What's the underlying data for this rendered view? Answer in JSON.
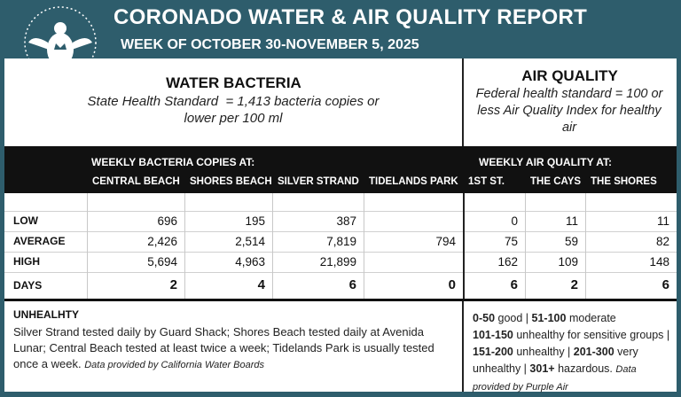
{
  "header": {
    "title": "CORONADO WATER & AIR QUALITY REPORT",
    "subtitle": "WEEK OF OCTOBER 30-NOVEMBER 5, 2025"
  },
  "water": {
    "heading": "WATER BACTERIA",
    "standard": "State Health Standard  = 1,413 bacteria copies or lower per 100 ml"
  },
  "air": {
    "heading": "AIR QUALITY",
    "standard": "Federal health standard = 100 or less Air Quality Index for healthy air"
  },
  "table": {
    "water_caption": "WEEKLY BACTERIA COPIES AT:",
    "air_caption": "WEEKLY AIR QUALITY AT:",
    "columns": [
      "CENTRAL BEACH",
      "SHORES BEACH",
      "SILVER STRAND",
      "TIDELANDS PARK",
      "1ST ST.",
      "THE CAYS",
      "THE SHORES"
    ],
    "rows": [
      {
        "label": "LOW",
        "cells": [
          "696",
          "195",
          "387",
          null,
          "0",
          "11",
          "11"
        ]
      },
      {
        "label": "AVERAGE",
        "cells": [
          "2,426",
          "2,514",
          "7,819",
          "794",
          "75",
          "59",
          "82"
        ]
      },
      {
        "label": "HIGH",
        "cells": [
          "5,694",
          "4,963",
          "21,899",
          null,
          "162",
          "109",
          "148"
        ]
      },
      {
        "label": "DAYS",
        "cells": [
          "2",
          "4",
          "6",
          "0",
          "6",
          "2",
          "6"
        ]
      }
    ]
  },
  "notes": {
    "heading": "UNHEALHTY",
    "text": "Silver Strand tested daily by Guard Shack; Shores Beach tested daily at Avenida Lunar; Central Beach tested at least twice a week; Tidelands Park is usually tested once a week.",
    "source": "Data provided by California Water Boards"
  },
  "aqi_scale": {
    "items": [
      {
        "range": "0-50",
        "label": "good |"
      },
      {
        "range": "51-100",
        "label": "moderate"
      },
      {
        "range": "101-150",
        "label": "unhealthy for sensitive groups |"
      },
      {
        "range": "151-200",
        "label": "unhealthy |"
      },
      {
        "range": "201-300",
        "label": "very unhealthy |"
      },
      {
        "range": "301+",
        "label": "hazardous."
      }
    ],
    "source": "Data provided by Purple Air"
  }
}
